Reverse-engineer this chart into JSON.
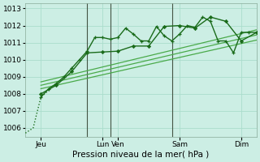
{
  "xlabel": "Pression niveau de la mer( hPa )",
  "bg_color": "#cceee4",
  "grid_color": "#aaddcc",
  "line_color_dark": "#1a6b1a",
  "line_color_mid": "#2d8b2d",
  "line_color_light": "#4aaa4a",
  "ylim": [
    1005.5,
    1013.3
  ],
  "yticks": [
    1006,
    1007,
    1008,
    1009,
    1010,
    1011,
    1012,
    1013
  ],
  "xlim": [
    0,
    180
  ],
  "xtick_positions": [
    12,
    60,
    72,
    120,
    168
  ],
  "xtick_labels": [
    "Jeu",
    "Lun",
    "Ven",
    "Sam",
    "Dim"
  ],
  "vlines": [
    48,
    66,
    114
  ],
  "series_dotted": {
    "x": [
      0,
      6,
      12,
      18
    ],
    "y": [
      1005.7,
      1006.0,
      1007.8,
      1008.2
    ]
  },
  "series_wiggly": {
    "x": [
      12,
      18,
      24,
      30,
      36,
      42,
      48,
      54,
      60,
      66,
      72,
      78,
      84,
      90,
      96,
      102,
      108,
      114,
      120,
      126,
      132,
      138,
      144,
      150,
      156,
      162,
      168,
      174,
      180
    ],
    "y": [
      1007.8,
      1008.3,
      1008.6,
      1009.0,
      1009.5,
      1010.0,
      1010.5,
      1011.3,
      1011.3,
      1011.2,
      1011.3,
      1011.85,
      1011.5,
      1011.1,
      1011.1,
      1011.95,
      1011.4,
      1011.1,
      1011.5,
      1012.0,
      1011.9,
      1012.5,
      1012.25,
      1011.1,
      1011.1,
      1010.4,
      1011.6,
      1011.6,
      1011.6
    ]
  },
  "series_diamond": {
    "x": [
      12,
      24,
      36,
      48,
      60,
      72,
      84,
      96,
      108,
      120,
      132,
      144,
      156,
      168,
      180
    ],
    "y": [
      1008.0,
      1008.5,
      1009.3,
      1010.4,
      1010.45,
      1010.5,
      1010.8,
      1010.8,
      1011.95,
      1012.0,
      1011.85,
      1012.5,
      1012.25,
      1011.1,
      1011.6
    ]
  },
  "linear1": {
    "x": [
      12,
      180
    ],
    "y": [
      1008.3,
      1011.15
    ]
  },
  "linear2": {
    "x": [
      12,
      180
    ],
    "y": [
      1008.5,
      1011.45
    ]
  },
  "linear3": {
    "x": [
      12,
      180
    ],
    "y": [
      1008.7,
      1011.75
    ]
  }
}
